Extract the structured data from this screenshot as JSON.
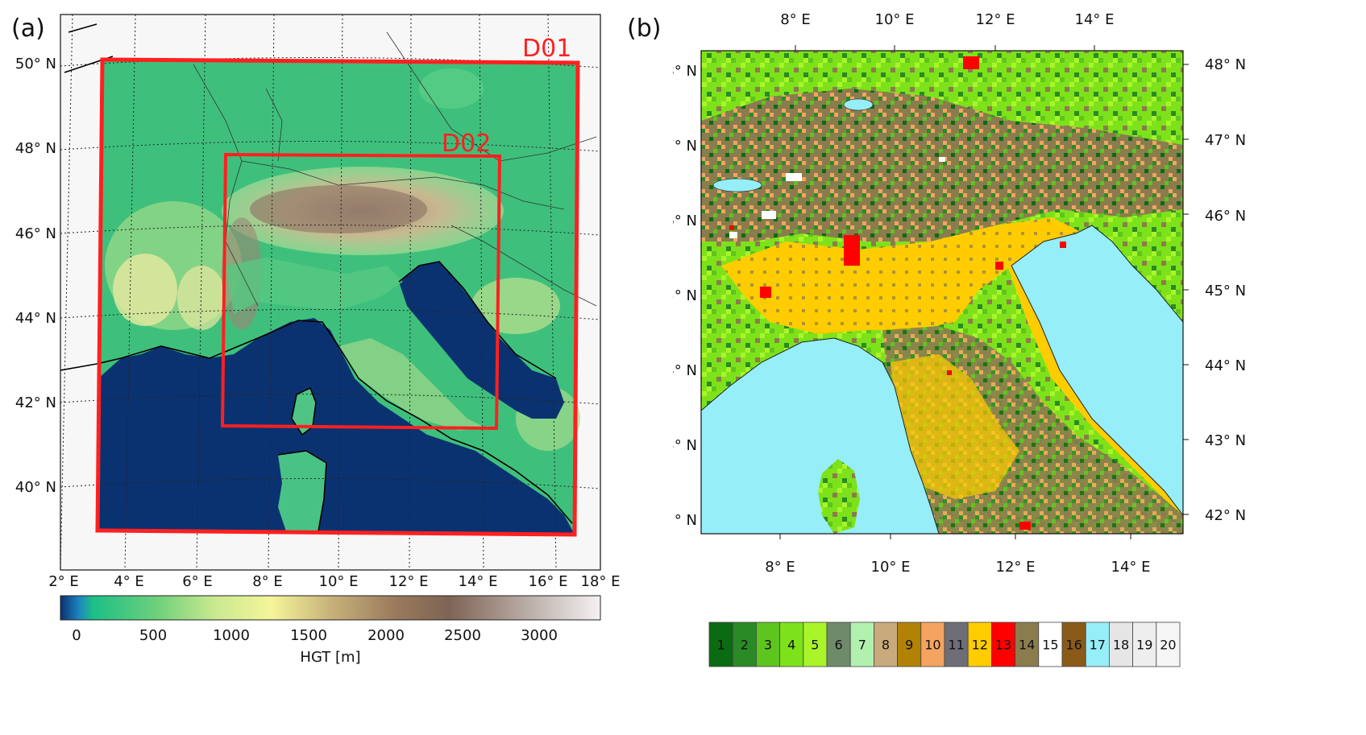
{
  "panel_a": {
    "label": "(a)",
    "lat_labels": [
      "50° N",
      "48° N",
      "46° N",
      "44° N",
      "42° N",
      "40° N"
    ],
    "lon_labels": [
      "2° E",
      "4° E",
      "6° E",
      "8° E",
      "10° E",
      "12° E",
      "14° E",
      "16° E",
      "18° E"
    ],
    "domains": [
      {
        "name": "D01",
        "color": "#ff2020"
      },
      {
        "name": "D02",
        "color": "#ff2020"
      }
    ],
    "colorbar": {
      "ticks": [
        "0",
        "500",
        "1000",
        "1500",
        "2000",
        "2500",
        "3000"
      ],
      "label": "HGT [m]",
      "colors": [
        "#0a3070",
        "#1e86c0",
        "#1cbf86",
        "#2cc878",
        "#6fd07a",
        "#aee08a",
        "#f6f59a",
        "#c8b27a",
        "#9a7a5c",
        "#7e6454",
        "#a89890",
        "#d8d0cc",
        "#f4f2f2"
      ]
    },
    "colors": {
      "sea": "#0b3270",
      "land": "#3ec07c",
      "highland": "#eef0a0",
      "mountain": "#7a6656",
      "snow": "#e8e2e0",
      "frame": "#ff2020"
    }
  },
  "panel_b": {
    "label": "(b)",
    "lat_labels": [
      "48° N",
      "47° N",
      "46° N",
      "45° N",
      "44° N",
      "43° N",
      "42° N"
    ],
    "lon_labels": [
      "8° E",
      "10° E",
      "12° E",
      "14° E"
    ],
    "legend": [
      {
        "id": "1",
        "color": "#0b6b12"
      },
      {
        "id": "2",
        "color": "#2a8a26"
      },
      {
        "id": "3",
        "color": "#5ec41e"
      },
      {
        "id": "4",
        "color": "#7ee21a"
      },
      {
        "id": "5",
        "color": "#a9f52a"
      },
      {
        "id": "6",
        "color": "#6e8a6a"
      },
      {
        "id": "7",
        "color": "#b2f0b0"
      },
      {
        "id": "8",
        "color": "#c8aa7c"
      },
      {
        "id": "9",
        "color": "#b28206"
      },
      {
        "id": "10",
        "color": "#f4a460"
      },
      {
        "id": "11",
        "color": "#6e6e78"
      },
      {
        "id": "12",
        "color": "#ffcc00"
      },
      {
        "id": "13",
        "color": "#ff0000"
      },
      {
        "id": "14",
        "color": "#8b7c4e"
      },
      {
        "id": "15",
        "color": "#ffffff"
      },
      {
        "id": "16",
        "color": "#8a5a18"
      },
      {
        "id": "17",
        "color": "#96eef8"
      },
      {
        "id": "18",
        "color": "#e6e6e6"
      },
      {
        "id": "19",
        "color": "#eeeeee"
      },
      {
        "id": "20",
        "color": "#f6f6f6"
      }
    ]
  }
}
